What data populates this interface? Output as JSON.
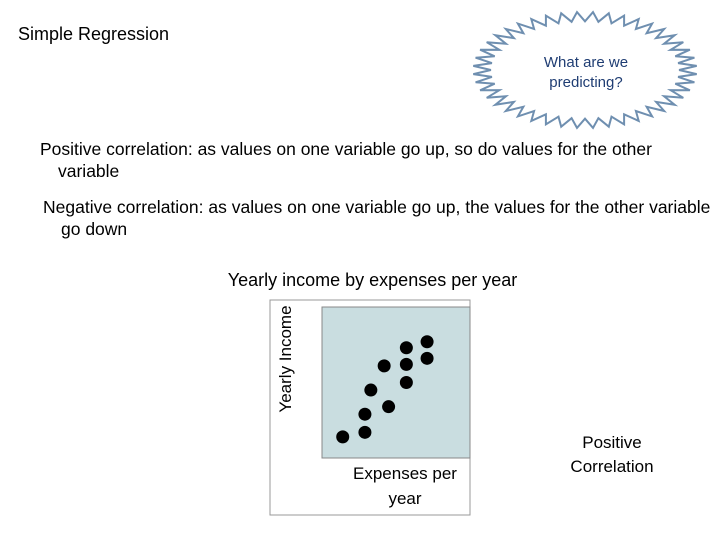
{
  "header": {
    "title": "Simple Regression",
    "bubble": "What are we predicting?"
  },
  "paragraphs": [
    "Positive correlation: as values on one variable go up, so do values for the other variable",
    "Negative correlation: as values on one variable go up, the values for the other variable go down"
  ],
  "chart_data": {
    "type": "scatter",
    "title": "Yearly income by expenses per year",
    "x_label": "Expenses per year",
    "y_label": "Yearly Income",
    "x": [
      1.4,
      2.9,
      2.9,
      3.3,
      4.5,
      4.2,
      5.7,
      5.7,
      5.7,
      7.1,
      7.1
    ],
    "values": [
      1.4,
      1.7,
      2.9,
      4.5,
      3.4,
      6.1,
      5.0,
      6.2,
      7.3,
      6.6,
      7.7
    ],
    "xlim": [
      0,
      10
    ],
    "ylim": [
      0,
      10
    ],
    "color": "#000000",
    "background": "#c9dde0"
  },
  "caption": "Positive Correlation"
}
